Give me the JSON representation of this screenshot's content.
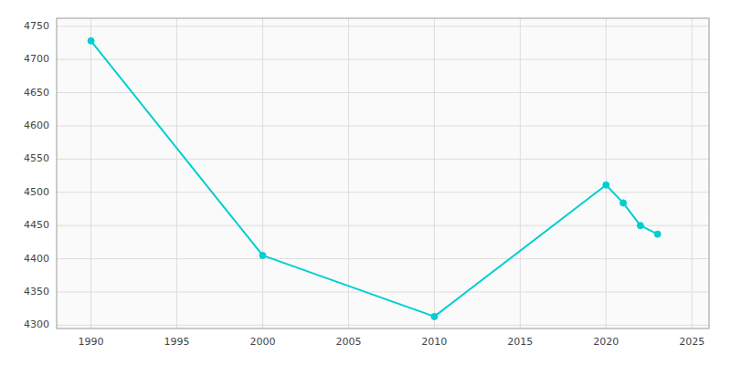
{
  "chart_data": {
    "type": "line",
    "x": [
      1990,
      2000,
      2010,
      2020,
      2021,
      2022,
      2023
    ],
    "values": [
      4728,
      4405,
      4313,
      4511,
      4484,
      4450,
      4437
    ],
    "color": "#00CED1",
    "marker": "circle",
    "xlim": [
      1988,
      2026
    ],
    "ylim": [
      4295,
      4762
    ],
    "xticks": [
      1990,
      1995,
      2000,
      2005,
      2010,
      2015,
      2020,
      2025
    ],
    "yticks": [
      4300,
      4350,
      4400,
      4450,
      4500,
      4550,
      4600,
      4650,
      4700,
      4750
    ],
    "grid": true
  }
}
